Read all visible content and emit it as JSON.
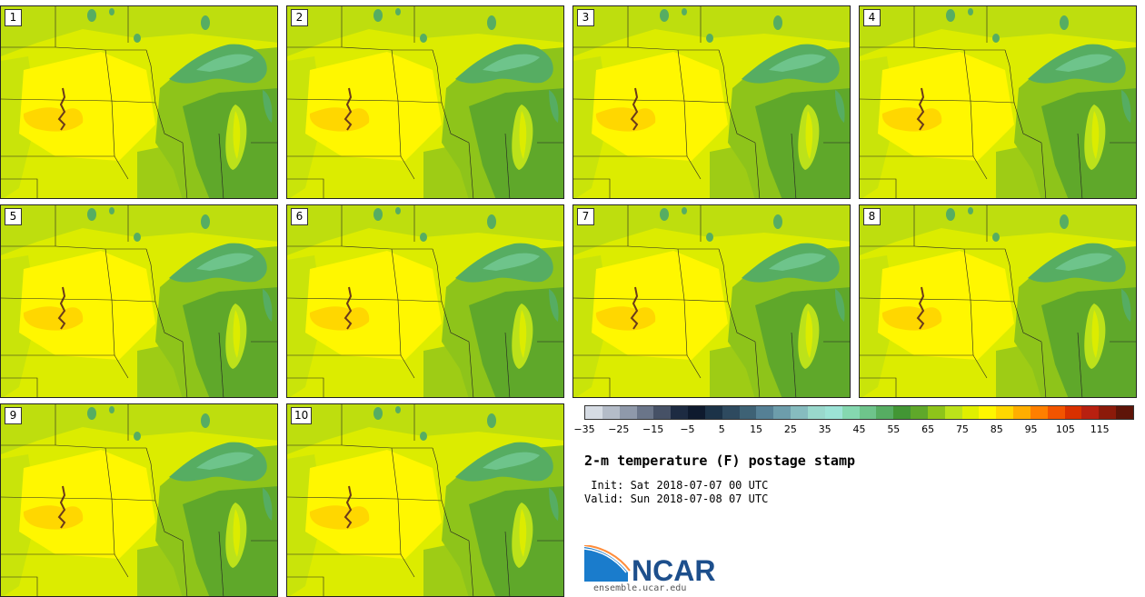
{
  "members": [
    "1",
    "2",
    "3",
    "4",
    "5",
    "6",
    "7",
    "8",
    "9",
    "10"
  ],
  "colorbar": {
    "colors": [
      "#d6dce4",
      "#b4bcc8",
      "#8f99aa",
      "#6a7589",
      "#465166",
      "#1d2b42",
      "#0e1a2e",
      "#1c3348",
      "#2e4a5f",
      "#3e6275",
      "#558095",
      "#6d9dab",
      "#86bcbf",
      "#99d8cc",
      "#9ce3d6",
      "#85d8b0",
      "#6ec48b",
      "#56ad62",
      "#429634",
      "#5fa82a",
      "#8ec41a",
      "#bce21a",
      "#e0ef00",
      "#fff700",
      "#ffd700",
      "#ffae00",
      "#ff7f00",
      "#f25400",
      "#d93000",
      "#b82010",
      "#8c1a0a",
      "#5e1408"
    ],
    "ticks": [
      "−35",
      "−25",
      "−15",
      "−5",
      "5",
      "15",
      "25",
      "35",
      "45",
      "55",
      "65",
      "75",
      "85",
      "95",
      "105",
      "115"
    ]
  },
  "title": "2-m temperature (F) postage stamp",
  "init_line": " Init: Sat 2018-07-07 00 UTC",
  "valid_line": "Valid: Sun 2018-07-08 07 UTC",
  "logo_text": "NCAR",
  "logo_url": "ensemble.ucar.edu"
}
